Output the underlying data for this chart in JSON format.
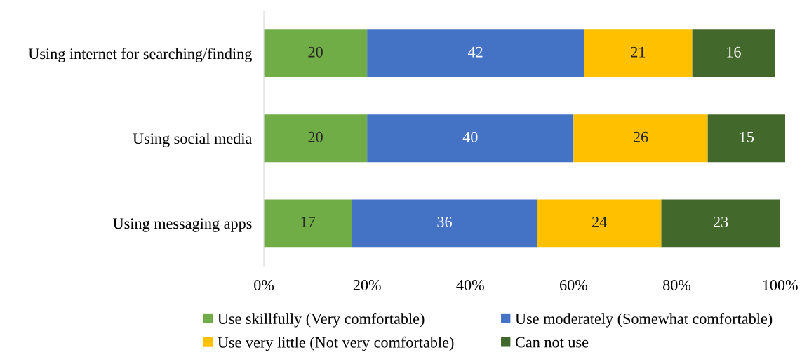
{
  "chart_data": {
    "type": "bar",
    "orientation": "horizontal",
    "stacked": true,
    "categories": [
      "Using internet for searching/finding",
      "Using social media",
      "Using messaging apps"
    ],
    "series": [
      {
        "name": "Use skillfully (Very comfortable)",
        "color": "#70ad47",
        "values": [
          20,
          20,
          17
        ]
      },
      {
        "name": "Use moderately (Somewhat comfortable)",
        "color": "#4472c4",
        "values": [
          42,
          40,
          36
        ]
      },
      {
        "name": "Use very little (Not very comfortable)",
        "color": "#ffc000",
        "values": [
          21,
          26,
          24
        ]
      },
      {
        "name": "Can not use",
        "color": "#43682b",
        "values": [
          16,
          15,
          23
        ]
      }
    ],
    "xlim": [
      0,
      101
    ],
    "xticks": [
      {
        "value": 0,
        "label": "0%"
      },
      {
        "value": 20,
        "label": "20%"
      },
      {
        "value": 40,
        "label": "40%"
      },
      {
        "value": 60,
        "label": "60%"
      },
      {
        "value": 80,
        "label": "80%"
      },
      {
        "value": 100,
        "label": "100%"
      }
    ],
    "data_labels": true,
    "grid": false,
    "legend": "bottom"
  }
}
